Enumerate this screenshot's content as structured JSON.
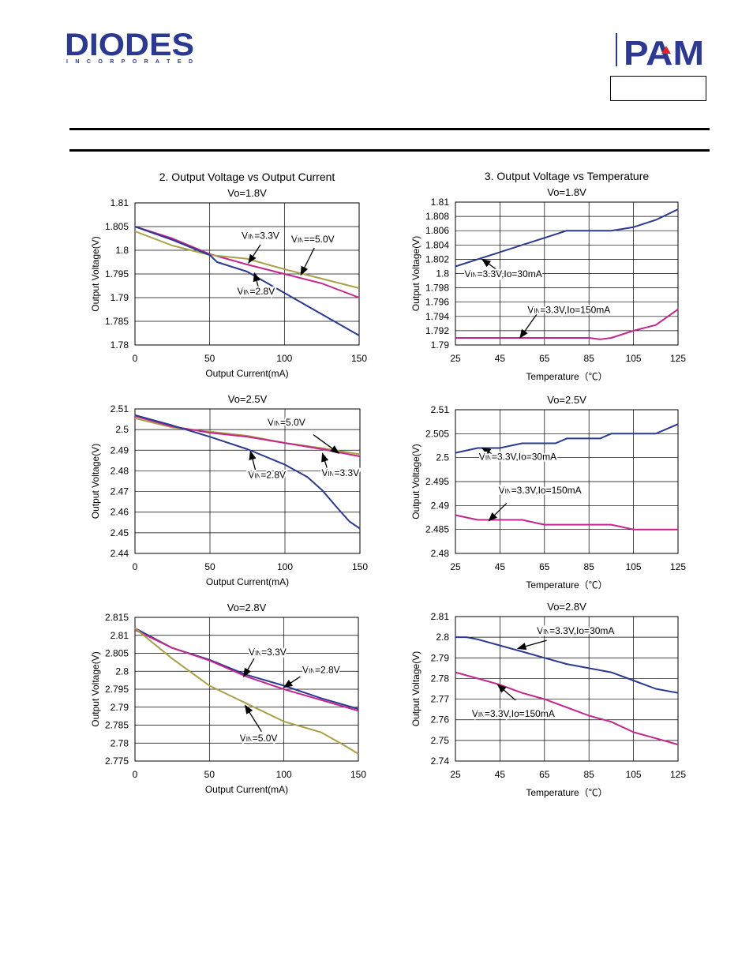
{
  "header": {
    "left_logo": "DIODES",
    "left_logo_sub": "I N C O R P O R A T E D",
    "right_logo": "PAM"
  },
  "colors": {
    "blue": "#2b3990",
    "magenta": "#c4258f",
    "olive": "#a8a04a",
    "grid": "#000000"
  },
  "chart_data": [
    {
      "type": "line",
      "title": "2. Output Voltage vs Output Current",
      "subtitle": "Vo=1.8V",
      "xlabel": "Output Current(mA)",
      "ylabel": "Output Voltage(V)",
      "xlim": [
        0,
        150
      ],
      "ylim": [
        1.78,
        1.81
      ],
      "xticks": [
        0,
        50,
        100,
        150
      ],
      "yticks": [
        1.78,
        1.785,
        1.79,
        1.795,
        1.8,
        1.805,
        1.81
      ],
      "ytick_labels": [
        "1.78",
        "1.785",
        "1.79",
        "1.795",
        "1.8",
        "1.805",
        "1.81"
      ],
      "series": [
        {
          "name": "VIN=3.3V",
          "color": "magenta",
          "x": [
            0,
            25,
            50,
            75,
            100,
            125,
            150
          ],
          "y": [
            1.805,
            1.8025,
            1.7992,
            1.797,
            1.795,
            1.793,
            1.79
          ]
        },
        {
          "name": "VIN==5.0V",
          "color": "olive",
          "x": [
            0,
            25,
            50,
            75,
            100,
            125,
            150
          ],
          "y": [
            1.804,
            1.801,
            1.799,
            1.7982,
            1.796,
            1.794,
            1.792
          ]
        },
        {
          "name": "VIN=2.8V",
          "color": "blue",
          "x": [
            0,
            25,
            50,
            55,
            75,
            100,
            125,
            150
          ],
          "y": [
            1.805,
            1.8022,
            1.799,
            1.7975,
            1.7955,
            1.791,
            1.7865,
            1.782
          ]
        }
      ],
      "annotations": [
        {
          "text": "VIN=3.3V",
          "label_at": [
            84,
            1.8024
          ],
          "arrow_from": [
            84,
            1.8012
          ],
          "arrow_to": [
            76,
            1.7973
          ]
        },
        {
          "text": "VIN==5.0V",
          "label_at": [
            119,
            1.8017
          ],
          "arrow_from": [
            120,
            1.8005
          ],
          "arrow_to": [
            111,
            1.7948
          ]
        },
        {
          "text": "VIN=2.8V",
          "label_at": [
            81,
            1.7907
          ],
          "arrow_from": [
            83,
            1.7917
          ],
          "arrow_to": [
            80,
            1.7952
          ]
        }
      ]
    },
    {
      "type": "line",
      "title": "3. Output Voltage vs Temperature",
      "subtitle": "Vo=1.8V",
      "xlabel": "Temperature（℃）",
      "ylabel": "Output Voltage(V)",
      "xlim": [
        25,
        125
      ],
      "ylim": [
        1.79,
        1.81
      ],
      "xticks": [
        25,
        45,
        65,
        85,
        105,
        125
      ],
      "yticks": [
        1.79,
        1.792,
        1.794,
        1.796,
        1.798,
        1.8,
        1.802,
        1.804,
        1.806,
        1.808,
        1.81
      ],
      "ytick_labels": [
        "1.79",
        "1.792",
        "1.794",
        "1.796",
        "1.798",
        "1.8",
        "1.802",
        "1.804",
        "1.806",
        "1.808",
        "1.81"
      ],
      "series": [
        {
          "name": "VIN=3.3V,Io=30mA",
          "color": "blue",
          "x": [
            25,
            35,
            45,
            55,
            65,
            75,
            85,
            95,
            105,
            115,
            125
          ],
          "y": [
            1.801,
            1.802,
            1.803,
            1.804,
            1.805,
            1.806,
            1.806,
            1.806,
            1.8065,
            1.8075,
            1.809
          ]
        },
        {
          "name": "VIN=3.3V,Io=150mA",
          "color": "magenta",
          "x": [
            25,
            45,
            65,
            85,
            90,
            95,
            105,
            115,
            125
          ],
          "y": [
            1.791,
            1.791,
            1.791,
            1.791,
            1.7908,
            1.791,
            1.792,
            1.7928,
            1.795
          ]
        }
      ],
      "annotations": [
        {
          "text": "VIN=3.3V,Io=30mA",
          "label_at": [
            46.5,
            1.7995
          ],
          "arrow_from": [
            46,
            1.8
          ],
          "arrow_to": [
            37,
            1.802
          ]
        },
        {
          "text": "VIN=3.3V,Io=150mA",
          "label_at": [
            76,
            1.7945
          ],
          "arrow_from": [
            62,
            1.7945
          ],
          "arrow_to": [
            54,
            1.791
          ]
        }
      ]
    },
    {
      "type": "line",
      "title": "",
      "subtitle": "Vo=2.5V",
      "xlabel": "Output Current(mA)",
      "ylabel": "Output Voltage(V)",
      "xlim": [
        0,
        150
      ],
      "ylim": [
        2.44,
        2.51
      ],
      "xticks": [
        0,
        50,
        100,
        150
      ],
      "yticks": [
        2.44,
        2.45,
        2.46,
        2.47,
        2.48,
        2.49,
        2.5,
        2.51
      ],
      "ytick_labels": [
        "2.44",
        "2.45",
        "2.46",
        "2.47",
        "2.48",
        "2.49",
        "2.5",
        "2.51"
      ],
      "series": [
        {
          "name": "VIN=5.0V",
          "color": "olive",
          "x": [
            0,
            25,
            50,
            75,
            100,
            125,
            150
          ],
          "y": [
            2.5055,
            2.501,
            2.499,
            2.497,
            2.4935,
            2.491,
            2.488
          ]
        },
        {
          "name": "VIN=3.3V",
          "color": "magenta",
          "x": [
            0,
            25,
            50,
            75,
            100,
            125,
            150
          ],
          "y": [
            2.5065,
            2.5015,
            2.4985,
            2.4965,
            2.4935,
            2.4905,
            2.487
          ]
        },
        {
          "name": "VIN=2.8V",
          "color": "blue",
          "x": [
            0,
            25,
            50,
            75,
            100,
            115,
            125,
            135,
            143,
            150
          ],
          "y": [
            2.507,
            2.502,
            2.4965,
            2.4905,
            2.483,
            2.477,
            2.4705,
            2.462,
            2.4555,
            2.452
          ]
        }
      ],
      "annotations": [
        {
          "text": "VIN=5.0V",
          "label_at": [
            101,
            2.502
          ],
          "arrow_from": [
            119,
            2.4975
          ],
          "arrow_to": [
            136,
            2.4885
          ]
        },
        {
          "text": "VIN=3.3V",
          "label_at": [
            137,
            2.4775
          ],
          "arrow_from": [
            128,
            2.4815
          ],
          "arrow_to": [
            125,
            2.4885
          ]
        },
        {
          "text": "VIN=2.8V",
          "label_at": [
            88,
            2.4765
          ],
          "arrow_from": [
            81,
            2.4785
          ],
          "arrow_to": [
            77,
            2.4895
          ]
        }
      ]
    },
    {
      "type": "line",
      "title": "",
      "subtitle": "Vo=2.5V",
      "xlabel": "Temperature（℃）",
      "ylabel": "Output Voltage(V)",
      "xlim": [
        25,
        125
      ],
      "ylim": [
        2.48,
        2.51
      ],
      "xticks": [
        25,
        45,
        65,
        85,
        105,
        125
      ],
      "yticks": [
        2.48,
        2.485,
        2.49,
        2.495,
        2.5,
        2.505,
        2.51
      ],
      "ytick_labels": [
        "2.48",
        "2.485",
        "2.49",
        "2.495",
        "2.5",
        "2.505",
        "2.51"
      ],
      "series": [
        {
          "name": "VIN=3.3V,Io=30mA",
          "color": "blue",
          "x": [
            25,
            35,
            45,
            55,
            65,
            70,
            75,
            85,
            90,
            95,
            105,
            115,
            125
          ],
          "y": [
            2.501,
            2.502,
            2.502,
            2.503,
            2.503,
            2.503,
            2.504,
            2.504,
            2.504,
            2.505,
            2.505,
            2.505,
            2.507
          ]
        },
        {
          "name": "VIN=3.3V,Io=150mA",
          "color": "magenta",
          "x": [
            25,
            35,
            45,
            55,
            60,
            65,
            75,
            85,
            95,
            100,
            105,
            115,
            125
          ],
          "y": [
            2.488,
            2.487,
            2.487,
            2.487,
            2.4865,
            2.486,
            2.486,
            2.486,
            2.486,
            2.4855,
            2.485,
            2.485,
            2.485
          ]
        }
      ],
      "annotations": [
        {
          "text": "VIN=3.3V,Io=30mA",
          "label_at": [
            53,
            2.4995
          ],
          "arrow_from": [
            46,
            2.4995
          ],
          "arrow_to": [
            37,
            2.502
          ]
        },
        {
          "text": "VIN=3.3V,Io=150mA",
          "label_at": [
            63,
            2.4925
          ],
          "arrow_from": [
            48,
            2.4905
          ],
          "arrow_to": [
            40,
            2.4868
          ]
        }
      ]
    },
    {
      "type": "line",
      "title": "",
      "subtitle": "Vo=2.8V",
      "xlabel": "Output Current(mA)",
      "ylabel": "Output Voltage(V)",
      "xlim": [
        0,
        150
      ],
      "ylim": [
        2.775,
        2.815
      ],
      "xticks": [
        0,
        50,
        100,
        150
      ],
      "yticks": [
        2.775,
        2.78,
        2.785,
        2.79,
        2.795,
        2.8,
        2.805,
        2.81,
        2.815
      ],
      "ytick_labels": [
        "2.775",
        "2.78",
        "2.785",
        "2.79",
        "2.795",
        "2.8",
        "2.805",
        "2.81",
        "2.815"
      ],
      "series": [
        {
          "name": "VIN=3.3V",
          "color": "blue",
          "x": [
            0,
            25,
            50,
            75,
            100,
            125,
            150
          ],
          "y": [
            2.812,
            2.8065,
            2.8032,
            2.799,
            2.796,
            2.7925,
            2.7895
          ]
        },
        {
          "name": "VIN=2.8V",
          "color": "magenta",
          "x": [
            0,
            25,
            50,
            75,
            100,
            125,
            150
          ],
          "y": [
            2.8115,
            2.8065,
            2.803,
            2.7985,
            2.795,
            2.792,
            2.789
          ]
        },
        {
          "name": "VIN=5.0V",
          "color": "olive",
          "x": [
            0,
            25,
            50,
            75,
            100,
            125,
            140,
            150
          ],
          "y": [
            2.812,
            2.8035,
            2.796,
            2.791,
            2.786,
            2.783,
            2.7795,
            2.777
          ]
        }
      ],
      "annotations": [
        {
          "text": "VIN=3.3V",
          "label_at": [
            89,
            2.8045
          ],
          "arrow_from": [
            80,
            2.8035
          ],
          "arrow_to": [
            73,
            2.7985
          ]
        },
        {
          "text": "VIN=2.8V",
          "label_at": [
            125,
            2.7995
          ],
          "arrow_from": [
            111,
            2.7985
          ],
          "arrow_to": [
            100,
            2.7955
          ]
        },
        {
          "text": "VIN=5.0V",
          "label_at": [
            83,
            2.7805
          ],
          "arrow_from": [
            85,
            2.7832
          ],
          "arrow_to": [
            74,
            2.7905
          ]
        }
      ]
    },
    {
      "type": "line",
      "title": "",
      "subtitle": "Vo=2.8V",
      "xlabel": "Temperature（℃）",
      "ylabel": "Output Voltage(V)",
      "xlim": [
        25,
        125
      ],
      "ylim": [
        2.74,
        2.81
      ],
      "xticks": [
        25,
        45,
        65,
        85,
        105,
        125
      ],
      "yticks": [
        2.74,
        2.75,
        2.76,
        2.77,
        2.78,
        2.79,
        2.8,
        2.81
      ],
      "ytick_labels": [
        "2.74",
        "2.75",
        "2.76",
        "2.77",
        "2.78",
        "2.79",
        "2.8",
        "2.81"
      ],
      "series": [
        {
          "name": "VIN=3.3V,Io=30mA",
          "color": "blue",
          "x": [
            25,
            30,
            35,
            45,
            55,
            65,
            75,
            85,
            95,
            105,
            115,
            125
          ],
          "y": [
            2.8,
            2.8,
            2.799,
            2.796,
            2.793,
            2.79,
            2.787,
            2.785,
            2.783,
            2.779,
            2.775,
            2.773
          ]
        },
        {
          "name": "VIN=3.3V,Io=150mA",
          "color": "magenta",
          "x": [
            25,
            35,
            45,
            55,
            65,
            75,
            85,
            95,
            105,
            115,
            125
          ],
          "y": [
            2.783,
            2.78,
            2.777,
            2.773,
            2.77,
            2.766,
            2.762,
            2.759,
            2.754,
            2.751,
            2.748
          ]
        }
      ],
      "annotations": [
        {
          "text": "VIN=3.3V,Io=30mA",
          "label_at": [
            79,
            2.8015
          ],
          "arrow_from": [
            66,
            2.7985
          ],
          "arrow_to": [
            53,
            2.7945
          ]
        },
        {
          "text": "VIN=3.3V,Io=150mA",
          "label_at": [
            51,
            2.7615
          ],
          "arrow_from": [
            52,
            2.7695
          ],
          "arrow_to": [
            44,
            2.777
          ]
        }
      ]
    }
  ]
}
